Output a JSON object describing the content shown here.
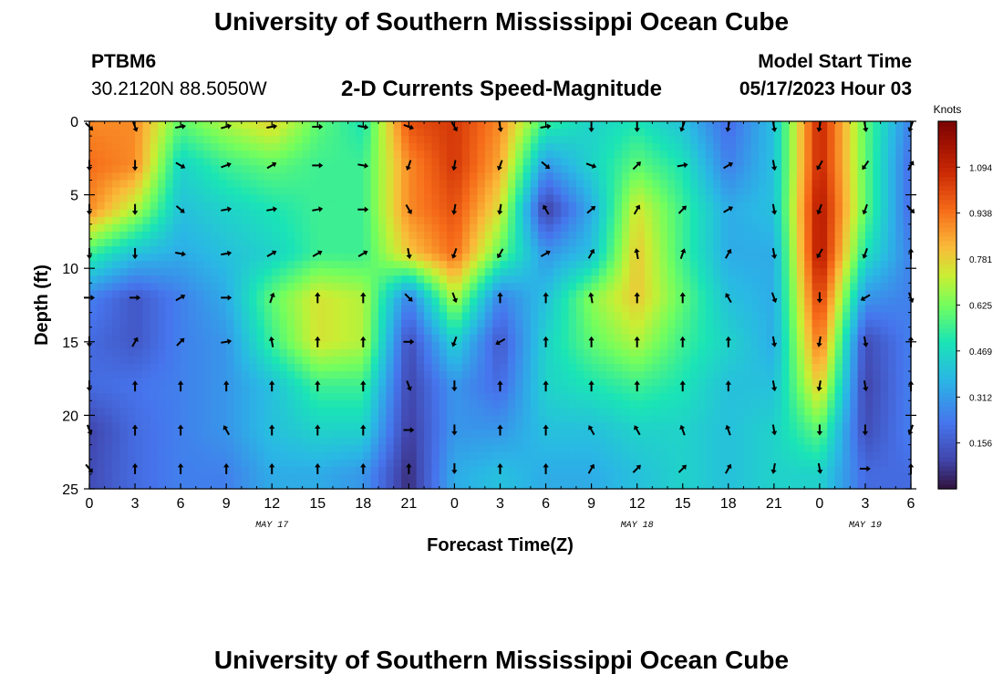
{
  "header": {
    "title": "University of Southern Mississippi Ocean Cube",
    "station": "PTBM6",
    "coords": "30.2120N  88.5050W",
    "subtitle": "2-D Currents Speed-Magnitude",
    "model_label": "Model Start Time",
    "model_time": "05/17/2023 Hour 03"
  },
  "footer": {
    "title": "University of Southern Mississippi Ocean Cube"
  },
  "chart_data": {
    "type": "heatmap",
    "title": "2-D Currents Speed-Magnitude",
    "xlabel": "Forecast Time(Z)",
    "ylabel": "Depth (ft)",
    "xlim": [
      0,
      54
    ],
    "ylim": [
      25,
      0
    ],
    "x_ticks": [
      0,
      3,
      6,
      9,
      12,
      15,
      18,
      21,
      24,
      27,
      30,
      33,
      36,
      39,
      42,
      45,
      48,
      51,
      54
    ],
    "x_tick_labels": [
      "0",
      "3",
      "6",
      "9",
      "12",
      "15",
      "18",
      "21",
      "0",
      "3",
      "6",
      "9",
      "12",
      "15",
      "18",
      "21",
      "0",
      "3",
      "6"
    ],
    "y_ticks": [
      0,
      5,
      10,
      15,
      20,
      25
    ],
    "y_tick_labels": [
      "0",
      "5",
      "10",
      "15",
      "20",
      "25"
    ],
    "date_labels": [
      {
        "x": 12,
        "label": "MAY 17"
      },
      {
        "x": 36,
        "label": "MAY 18"
      },
      {
        "x": 51,
        "label": "MAY 19"
      }
    ],
    "x_columns": [
      0,
      3,
      6,
      9,
      12,
      15,
      18,
      21,
      24,
      27,
      30,
      33,
      36,
      39,
      42,
      45,
      48,
      51,
      54
    ],
    "depths": [
      0,
      3,
      6,
      9,
      12,
      15,
      18,
      21,
      24
    ],
    "speed_knots": [
      [
        0.9,
        0.9,
        0.6,
        0.7,
        0.78,
        0.6,
        0.5,
        1.0,
        1.05,
        0.9,
        0.55,
        0.45,
        0.5,
        0.4,
        0.2,
        0.4,
        1.1,
        0.6,
        0.25
      ],
      [
        0.95,
        0.9,
        0.45,
        0.55,
        0.6,
        0.55,
        0.55,
        0.9,
        1.05,
        0.85,
        0.3,
        0.45,
        0.6,
        0.5,
        0.25,
        0.4,
        1.1,
        0.6,
        0.2
      ],
      [
        0.9,
        0.7,
        0.4,
        0.45,
        0.5,
        0.55,
        0.55,
        0.9,
        1.0,
        0.75,
        0.08,
        0.35,
        0.75,
        0.55,
        0.35,
        0.4,
        1.15,
        0.6,
        0.2
      ],
      [
        0.55,
        0.4,
        0.35,
        0.4,
        0.45,
        0.55,
        0.55,
        0.8,
        0.95,
        0.6,
        0.3,
        0.4,
        0.8,
        0.55,
        0.35,
        0.35,
        1.15,
        0.5,
        0.25
      ],
      [
        0.25,
        0.15,
        0.25,
        0.35,
        0.6,
        0.75,
        0.7,
        0.25,
        0.7,
        0.25,
        0.4,
        0.65,
        0.8,
        0.6,
        0.4,
        0.35,
        1.05,
        0.3,
        0.25
      ],
      [
        0.2,
        0.15,
        0.25,
        0.3,
        0.55,
        0.75,
        0.7,
        0.12,
        0.45,
        0.15,
        0.45,
        0.6,
        0.7,
        0.55,
        0.45,
        0.35,
        0.95,
        0.12,
        0.25
      ],
      [
        0.2,
        0.22,
        0.25,
        0.3,
        0.4,
        0.55,
        0.55,
        0.1,
        0.3,
        0.2,
        0.45,
        0.5,
        0.55,
        0.5,
        0.4,
        0.4,
        0.8,
        0.1,
        0.25
      ],
      [
        0.1,
        0.2,
        0.25,
        0.3,
        0.4,
        0.45,
        0.45,
        0.08,
        0.3,
        0.3,
        0.4,
        0.4,
        0.45,
        0.45,
        0.4,
        0.45,
        0.6,
        0.12,
        0.25
      ],
      [
        0.12,
        0.2,
        0.25,
        0.25,
        0.35,
        0.35,
        0.3,
        0.05,
        0.35,
        0.4,
        0.35,
        0.35,
        0.4,
        0.45,
        0.4,
        0.45,
        0.45,
        0.2,
        0.2
      ]
    ],
    "directions_deg": [
      [
        135,
        160,
        80,
        75,
        80,
        90,
        100,
        110,
        150,
        170,
        80,
        180,
        180,
        200,
        190,
        170,
        190,
        170,
        200
      ],
      [
        180,
        180,
        120,
        70,
        60,
        90,
        100,
        200,
        190,
        200,
        130,
        110,
        45,
        80,
        60,
        170,
        210,
        215,
        30
      ],
      [
        180,
        180,
        130,
        80,
        80,
        80,
        90,
        150,
        190,
        190,
        330,
        50,
        30,
        45,
        60,
        170,
        200,
        200,
        135
      ],
      [
        180,
        180,
        100,
        80,
        60,
        60,
        60,
        170,
        200,
        210,
        60,
        30,
        350,
        20,
        30,
        170,
        210,
        200,
        0
      ],
      [
        90,
        90,
        60,
        90,
        20,
        0,
        0,
        135,
        160,
        0,
        0,
        350,
        0,
        0,
        330,
        160,
        180,
        240,
        160
      ],
      [
        180,
        30,
        45,
        80,
        350,
        0,
        0,
        90,
        200,
        240,
        0,
        0,
        0,
        0,
        0,
        170,
        190,
        170,
        0
      ],
      [
        180,
        0,
        0,
        0,
        0,
        0,
        0,
        160,
        180,
        0,
        0,
        0,
        0,
        0,
        0,
        170,
        190,
        170,
        0
      ],
      [
        160,
        0,
        0,
        330,
        0,
        0,
        0,
        90,
        180,
        0,
        0,
        330,
        330,
        340,
        340,
        170,
        180,
        180,
        200
      ],
      [
        140,
        0,
        0,
        0,
        0,
        0,
        0,
        0,
        180,
        0,
        0,
        30,
        45,
        45,
        30,
        190,
        170,
        90,
        0
      ]
    ],
    "colorbar": {
      "label": "Knots",
      "min": 0,
      "max": 1.25,
      "ticks": [
        0.156,
        0.312,
        0.469,
        0.625,
        0.781,
        0.938,
        1.094
      ],
      "tick_labels": [
        "0.156",
        "0.312",
        "0.469",
        "0.625",
        "0.781",
        "0.938",
        "1.094"
      ]
    }
  }
}
